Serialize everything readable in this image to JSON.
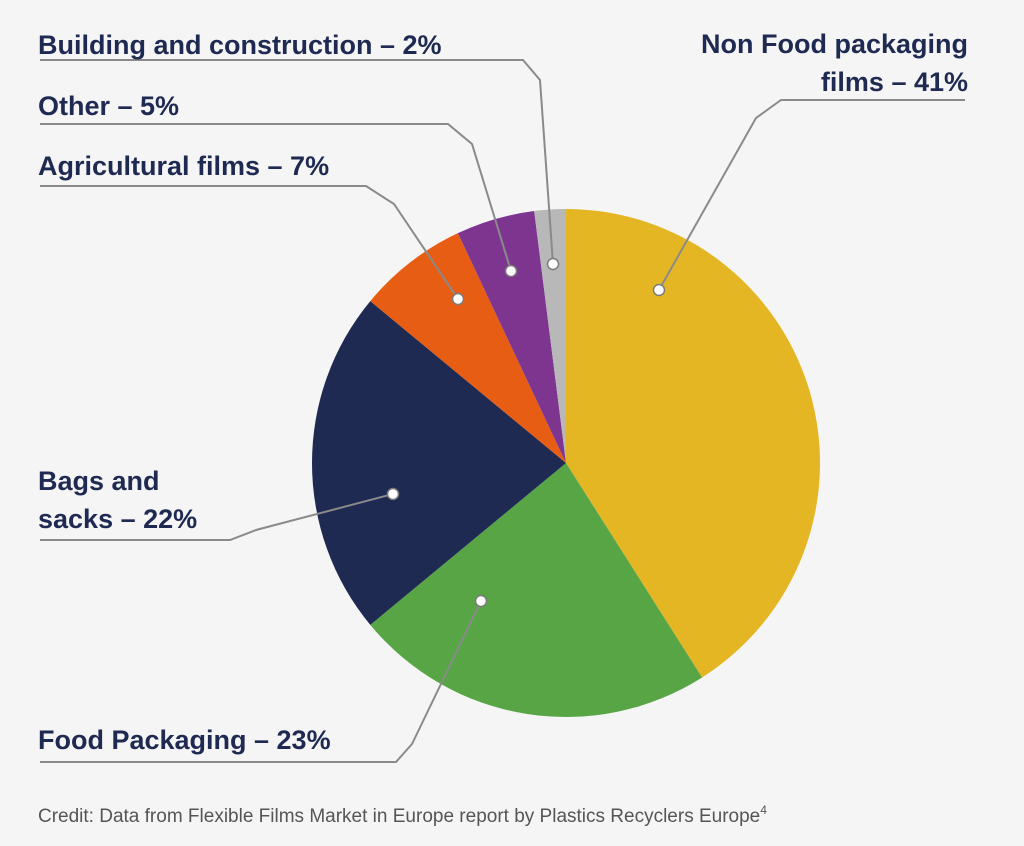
{
  "chart_data": {
    "type": "pie",
    "slices": [
      {
        "label": "Non Food packaging films",
        "value": 41,
        "color": "#e5b624",
        "label_lines": [
          "Non Food packaging",
          "films – 41%"
        ]
      },
      {
        "label": "Food Packaging",
        "value": 23,
        "color": "#57a545",
        "label_lines": [
          "Food Packaging – 23%"
        ]
      },
      {
        "label": "Bags and sacks",
        "value": 22,
        "color": "#1f2a52",
        "label_lines": [
          "Bags and",
          "sacks – 22%"
        ]
      },
      {
        "label": "Agricultural films",
        "value": 7,
        "color": "#e85d14",
        "label_lines": [
          "Agricultural films – 7%"
        ]
      },
      {
        "label": "Other",
        "value": 5,
        "color": "#7d3590",
        "label_lines": [
          "Other – 5%"
        ]
      },
      {
        "label": "Building and construction",
        "value": 2,
        "color": "#b8b8b8",
        "label_lines": [
          "Building and construction – 2%"
        ]
      }
    ],
    "label_color": "#1f2a52",
    "leader_color": "#8a8a8a"
  },
  "credit": {
    "text": "Credit: Data from Flexible Films Market in Europe report by Plastics Recyclers Europe",
    "superscript": "4"
  }
}
